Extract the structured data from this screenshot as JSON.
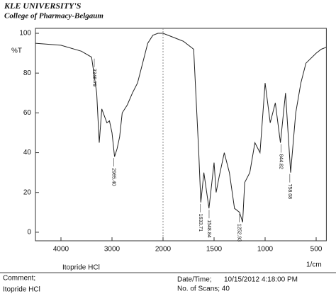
{
  "header": {
    "title": "KLE UNIVERSITY'S",
    "subtitle": "College of Pharmacy-Belgaum"
  },
  "chart_data": {
    "type": "line",
    "y_label": "%T",
    "x_unit": "1/cm",
    "sample_name": "Itopride HCl",
    "xlim": [
      4500,
      400
    ],
    "scale_change_at": 2000,
    "xticks": [
      4000,
      3000,
      2000,
      1500,
      1000,
      500
    ],
    "ylim": [
      -4.3,
      102.5
    ],
    "yticks": [
      0,
      20,
      40,
      60,
      80,
      100
    ],
    "color": "#222222",
    "x": [
      4500,
      4000,
      3600,
      3400,
      3300,
      3250,
      3200,
      3100,
      3050,
      3000,
      2950,
      2900,
      2850,
      2800,
      2700,
      2600,
      2500,
      2400,
      2300,
      2200,
      2100,
      2000,
      1900,
      1800,
      1700,
      1650,
      1630,
      1600,
      1550,
      1500,
      1480,
      1450,
      1400,
      1350,
      1300,
      1250,
      1220,
      1200,
      1150,
      1100,
      1050,
      1000,
      950,
      900,
      850,
      800,
      750,
      700,
      650,
      600,
      500,
      450,
      400
    ],
    "values": [
      95,
      94,
      91,
      88,
      70,
      45,
      62,
      55,
      56,
      50,
      38,
      42,
      48,
      60,
      64,
      70,
      75,
      85,
      95,
      99,
      100,
      100,
      98,
      96,
      92,
      40,
      15,
      30,
      12,
      35,
      20,
      28,
      40,
      30,
      12,
      10,
      5,
      25,
      30,
      45,
      40,
      75,
      55,
      65,
      45,
      70,
      30,
      60,
      75,
      85,
      90,
      92,
      93
    ],
    "peaks": [
      {
        "x": 3346.79,
        "y": 88,
        "label": "3346.79"
      },
      {
        "x": 2965.4,
        "y": 38,
        "label": "2965.40"
      },
      {
        "x": 1633.71,
        "y": 15,
        "label": "1633.71"
      },
      {
        "x": 1548.84,
        "y": 12,
        "label": "1548.84"
      },
      {
        "x": 1252.93,
        "y": 10,
        "label": "1252.93"
      },
      {
        "x": 844.82,
        "y": 45,
        "label": "844.82"
      },
      {
        "x": 758.08,
        "y": 30,
        "label": "758.08"
      }
    ]
  },
  "footer": {
    "comment_label": "Comment;",
    "comment": "Itopride HCl",
    "datetime_label": "Date/Time;",
    "datetime": "10/15/2012 4:18:00 PM",
    "scans": "No. of Scans; 40"
  }
}
